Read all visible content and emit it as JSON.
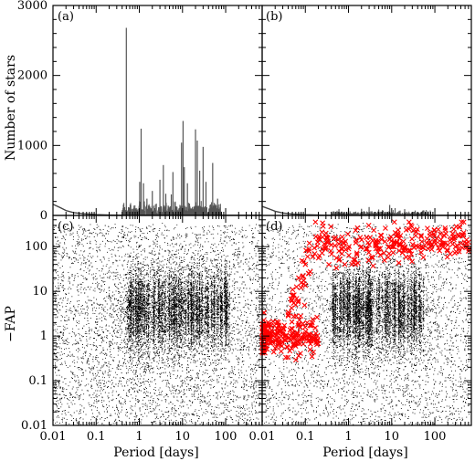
{
  "chart_data": [
    {
      "panel": "a",
      "type": "histogram",
      "x_scale": "log",
      "xlim": [
        0.01,
        700
      ],
      "ylim": [
        0,
        3000
      ],
      "ylabel": "Number of stars",
      "yticks": [
        "0",
        "1000",
        "2000",
        "3000"
      ],
      "grid": false,
      "bar_color": "#555555",
      "peaks": [
        {
          "period": 0.5,
          "count": 2680
        },
        {
          "period": 1.1,
          "count": 1240
        },
        {
          "period": 1.02,
          "count": 480
        },
        {
          "period": 1.25,
          "count": 460
        },
        {
          "period": 1.5,
          "count": 240
        },
        {
          "period": 2.0,
          "count": 350
        },
        {
          "period": 3.0,
          "count": 510
        },
        {
          "period": 3.6,
          "count": 720
        },
        {
          "period": 4.1,
          "count": 310
        },
        {
          "period": 5.5,
          "count": 300
        },
        {
          "period": 6.0,
          "count": 620
        },
        {
          "period": 9.5,
          "count": 1040
        },
        {
          "period": 10.3,
          "count": 1350
        },
        {
          "period": 11.0,
          "count": 690
        },
        {
          "period": 13.0,
          "count": 460
        },
        {
          "period": 20.0,
          "count": 1230
        },
        {
          "period": 22.0,
          "count": 1070
        },
        {
          "period": 25.0,
          "count": 640
        },
        {
          "period": 30.0,
          "count": 980
        },
        {
          "period": 35.0,
          "count": 480
        },
        {
          "period": 50.0,
          "count": 750
        },
        {
          "period": 65.0,
          "count": 240
        }
      ],
      "baseline": {
        "periods": [
          0.01,
          0.015,
          0.02,
          0.03,
          0.05,
          0.1,
          0.2,
          0.3
        ],
        "counts": [
          160,
          110,
          70,
          40,
          25,
          12,
          6,
          4
        ]
      }
    },
    {
      "panel": "b",
      "type": "histogram",
      "x_scale": "log",
      "xlim": [
        0.01,
        700
      ],
      "ylim": [
        0,
        3000
      ],
      "grid": false,
      "bar_color": "#555555",
      "peaks": [
        {
          "period": 0.6,
          "count": 90
        },
        {
          "period": 1.0,
          "count": 110
        },
        {
          "period": 2.0,
          "count": 95
        },
        {
          "period": 3.0,
          "count": 120
        },
        {
          "period": 5.0,
          "count": 85
        },
        {
          "period": 9.0,
          "count": 150
        },
        {
          "period": 12.0,
          "count": 105
        },
        {
          "period": 20.0,
          "count": 90
        },
        {
          "period": 35.0,
          "count": 70
        },
        {
          "period": 60.0,
          "count": 45
        }
      ],
      "baseline": {
        "periods": [
          0.01,
          0.015,
          0.02,
          0.03,
          0.05,
          0.1,
          0.2,
          0.3
        ],
        "counts": [
          130,
          90,
          60,
          35,
          20,
          10,
          5,
          3
        ]
      }
    },
    {
      "panel": "c",
      "type": "scatter",
      "x_scale": "log",
      "y_scale": "log",
      "xlim": [
        0.01,
        700
      ],
      "ylim": [
        0.01,
        500
      ],
      "xlabel": "Period [days]",
      "ylabel": "−FAP",
      "xticks": [
        "0.01",
        "0.1",
        "1",
        "10",
        "100"
      ],
      "yticks": [
        "0.01",
        "0.1",
        "1",
        "10",
        "100"
      ],
      "grid": false,
      "point_color": "#000000",
      "series": [
        {
          "points": [
            [
              0.012,
              0.35
            ],
            [
              0.015,
              1.2
            ],
            [
              0.02,
              0.8
            ],
            [
              0.03,
              2.5
            ],
            [
              0.05,
              0.15
            ],
            [
              0.08,
              5.0
            ],
            [
              0.1,
              1.5
            ],
            [
              0.2,
              8.0
            ],
            [
              0.3,
              3.0
            ],
            [
              0.5,
              20.0
            ],
            [
              0.6,
              60.0
            ],
            [
              0.8,
              4.0
            ],
            [
              1.0,
              100.0
            ],
            [
              1.5,
              10.0
            ],
            [
              2.0,
              40.0
            ],
            [
              3.0,
              2.0
            ],
            [
              4.0,
              80.0
            ],
            [
              5.0,
              15.0
            ],
            [
              7.0,
              5.0
            ],
            [
              10.0,
              100.0
            ],
            [
              15.0,
              30.0
            ],
            [
              20.0,
              8.0
            ],
            [
              30.0,
              60.0
            ],
            [
              50.0,
              3.0
            ],
            [
              80.0,
              20.0
            ],
            [
              150.0,
              6.0
            ],
            [
              300.0,
              2.0
            ]
          ]
        }
      ]
    },
    {
      "panel": "d",
      "type": "scatter",
      "x_scale": "log",
      "y_scale": "log",
      "xlim": [
        0.01,
        700
      ],
      "ylim": [
        0.01,
        500
      ],
      "xlabel": "Period [days]",
      "xticks": [
        "0.01",
        "0.1",
        "1",
        "10",
        "100"
      ],
      "grid": false,
      "series": [
        {
          "marker": "dot",
          "color": "#000000",
          "points": [
            [
              0.012,
              0.2
            ],
            [
              0.02,
              0.5
            ],
            [
              0.05,
              0.08
            ],
            [
              0.1,
              0.6
            ],
            [
              0.3,
              1.5
            ],
            [
              0.5,
              3.0
            ],
            [
              1.0,
              6.0
            ],
            [
              2.0,
              4.0
            ],
            [
              3.0,
              20.0
            ],
            [
              5.0,
              8.0
            ],
            [
              10.0,
              15.0
            ],
            [
              20.0,
              3.0
            ],
            [
              50.0,
              10.0
            ],
            [
              100.0,
              2.0
            ],
            [
              300.0,
              1.0
            ]
          ]
        },
        {
          "marker": "x",
          "color": "#ff0000",
          "points": [
            [
              0.011,
              0.9
            ],
            [
              0.012,
              0.6
            ],
            [
              0.013,
              1.2
            ],
            [
              0.015,
              0.7
            ],
            [
              0.018,
              1.0
            ],
            [
              0.02,
              0.8
            ],
            [
              0.022,
              1.5
            ],
            [
              0.025,
              0.9
            ],
            [
              0.03,
              1.1
            ],
            [
              0.04,
              3.0
            ],
            [
              0.05,
              8.0
            ],
            [
              0.06,
              5.0
            ],
            [
              0.07,
              20.0
            ],
            [
              0.08,
              12.0
            ],
            [
              0.1,
              40.0
            ],
            [
              0.12,
              25.0
            ],
            [
              0.15,
              60.0
            ],
            [
              0.2,
              150.0
            ],
            [
              0.25,
              90.0
            ],
            [
              0.3,
              200.0
            ],
            [
              0.4,
              110.0
            ],
            [
              0.5,
              160.0
            ],
            [
              0.6,
              80.0
            ],
            [
              0.8,
              120.0
            ],
            [
              1.0,
              90.0
            ],
            [
              1.5,
              140.0
            ],
            [
              2.0,
              100.0
            ],
            [
              3.0,
              110.0
            ],
            [
              5.0,
              90.0
            ],
            [
              7.0,
              130.0
            ],
            [
              10.0,
              100.0
            ],
            [
              15.0,
              110.0
            ],
            [
              20.0,
              90.0
            ],
            [
              50.0,
              130.0
            ],
            [
              100.0,
              140.0
            ],
            [
              200.0,
              110.0
            ],
            [
              400.0,
              120.0
            ],
            [
              600.0,
              80.0
            ]
          ]
        }
      ]
    }
  ]
}
